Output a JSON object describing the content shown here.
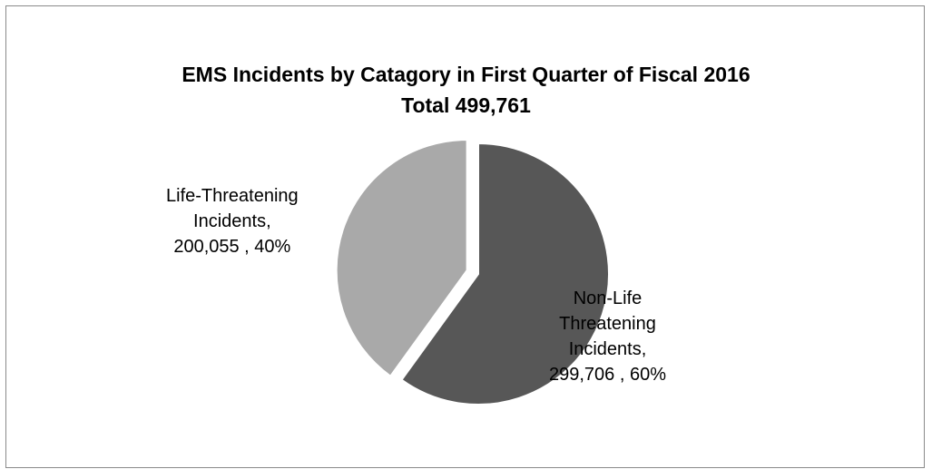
{
  "chart_data": {
    "type": "pie",
    "title": "EMS Incidents by Catagory in First Quarter of Fiscal 2016",
    "subtitle": "Total 499,761",
    "slices": [
      {
        "label_lines": [
          "Non-Life",
          "Threatening",
          "Incidents,",
          "299,706 , 60%"
        ],
        "value": 299706,
        "percent": 60,
        "color": "#575757",
        "exploded": false
      },
      {
        "label_lines": [
          "Life-Threatening",
          "Incidents,",
          "200,055 , 40%"
        ],
        "value": 200055,
        "percent": 40,
        "color": "#a9a9a9",
        "exploded": true
      }
    ],
    "legend": "none",
    "data_labels": "outside"
  }
}
